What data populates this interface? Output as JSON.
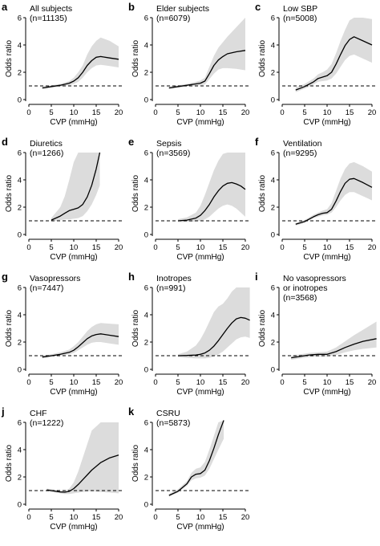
{
  "figure": {
    "xlabel": "CVP (mmHg)",
    "ylabel": "Odds ratio",
    "x_ticks": [
      0,
      5,
      10,
      15,
      20
    ],
    "y_ticks": [
      0,
      2,
      4,
      6
    ],
    "reference_line": 1
  },
  "chart_data": [
    {
      "letter": "a",
      "type": "line",
      "title_lines": [
        "All subjects",
        "(n=11135)"
      ],
      "xlim": [
        0,
        20
      ],
      "ylim": [
        0,
        6
      ],
      "reference": 1,
      "series": [
        {
          "x": [
            3,
            5,
            7,
            9,
            10,
            11,
            12,
            13,
            14,
            15,
            16,
            18,
            20
          ],
          "y": [
            0.85,
            0.95,
            1.05,
            1.2,
            1.35,
            1.6,
            2.0,
            2.5,
            2.85,
            3.1,
            3.15,
            3.05,
            2.95
          ]
        }
      ],
      "band": {
        "x": [
          3,
          5,
          7,
          9,
          10,
          11,
          12,
          13,
          14,
          15,
          16,
          18,
          20
        ],
        "lower": [
          0.75,
          0.85,
          0.95,
          1.05,
          1.15,
          1.3,
          1.6,
          2.0,
          2.3,
          2.5,
          2.55,
          2.45,
          2.35
        ],
        "upper": [
          0.95,
          1.05,
          1.15,
          1.35,
          1.6,
          2.0,
          2.5,
          3.3,
          3.9,
          4.3,
          4.55,
          4.3,
          3.9
        ]
      }
    },
    {
      "letter": "b",
      "type": "line",
      "title_lines": [
        "Elder subjects",
        "(n=6079)"
      ],
      "xlim": [
        0,
        20
      ],
      "ylim": [
        0,
        6
      ],
      "reference": 1,
      "series": [
        {
          "x": [
            3,
            5,
            7,
            9,
            10,
            11,
            12,
            13,
            14,
            15,
            16,
            18,
            20
          ],
          "y": [
            0.85,
            0.95,
            1.05,
            1.15,
            1.2,
            1.35,
            1.9,
            2.5,
            2.9,
            3.15,
            3.35,
            3.5,
            3.6
          ]
        }
      ],
      "band": {
        "x": [
          3,
          5,
          7,
          9,
          10,
          11,
          12,
          13,
          14,
          15,
          16,
          18,
          20
        ],
        "lower": [
          0.75,
          0.85,
          0.95,
          1.0,
          1.05,
          1.1,
          1.5,
          1.9,
          2.2,
          2.3,
          2.3,
          2.25,
          2.15
        ],
        "upper": [
          0.95,
          1.05,
          1.15,
          1.3,
          1.4,
          1.6,
          2.4,
          3.2,
          3.8,
          4.2,
          4.6,
          5.3,
          6.0
        ]
      }
    },
    {
      "letter": "c",
      "type": "line",
      "title_lines": [
        "Low SBP",
        "(n=5008)"
      ],
      "xlim": [
        0,
        20
      ],
      "ylim": [
        0,
        6
      ],
      "reference": 1,
      "series": [
        {
          "x": [
            3,
            5,
            7,
            8,
            9,
            10,
            11,
            12,
            13,
            14,
            15,
            16,
            18,
            20
          ],
          "y": [
            0.7,
            0.95,
            1.3,
            1.55,
            1.65,
            1.75,
            2.0,
            2.6,
            3.3,
            3.95,
            4.4,
            4.6,
            4.3,
            4.0
          ]
        }
      ],
      "band": {
        "x": [
          3,
          5,
          7,
          8,
          9,
          10,
          11,
          12,
          13,
          14,
          15,
          16,
          18,
          20
        ],
        "lower": [
          0.55,
          0.8,
          1.1,
          1.3,
          1.35,
          1.4,
          1.55,
          1.9,
          2.4,
          2.9,
          3.2,
          3.3,
          3.0,
          2.7
        ],
        "upper": [
          0.9,
          1.15,
          1.55,
          1.85,
          2.0,
          2.2,
          2.6,
          3.4,
          4.3,
          5.1,
          5.8,
          6.0,
          6.0,
          5.9
        ]
      }
    },
    {
      "letter": "d",
      "type": "line",
      "title_lines": [
        "Diuretics",
        "(n=1266)"
      ],
      "xlim": [
        0,
        20
      ],
      "ylim": [
        0,
        6
      ],
      "reference": 1,
      "series": [
        {
          "x": [
            5,
            7,
            8,
            9,
            10,
            11,
            12,
            13,
            14,
            15,
            15.8
          ],
          "y": [
            1.05,
            1.35,
            1.55,
            1.75,
            1.85,
            1.95,
            2.2,
            2.75,
            3.6,
            4.8,
            6.0
          ]
        }
      ],
      "band": {
        "x": [
          5,
          7,
          8,
          9,
          10,
          11,
          12,
          13,
          14,
          15,
          15.8
        ],
        "lower": [
          0.95,
          1.05,
          1.1,
          1.1,
          1.15,
          1.2,
          1.35,
          1.7,
          2.2,
          2.9,
          3.6
        ],
        "upper": [
          1.2,
          2.0,
          2.8,
          4.0,
          5.3,
          6.0,
          6.0,
          6.0,
          6.0,
          6.0,
          6.0
        ]
      }
    },
    {
      "letter": "e",
      "type": "line",
      "title_lines": [
        "Sepsis",
        "(n=3569)"
      ],
      "xlim": [
        0,
        20
      ],
      "ylim": [
        0,
        6
      ],
      "reference": 1,
      "series": [
        {
          "x": [
            5,
            7,
            9,
            10,
            11,
            12,
            13,
            14,
            15,
            16,
            17,
            18,
            19,
            20
          ],
          "y": [
            1.0,
            1.05,
            1.2,
            1.4,
            1.75,
            2.2,
            2.75,
            3.2,
            3.55,
            3.75,
            3.8,
            3.7,
            3.55,
            3.3
          ]
        }
      ],
      "band": {
        "x": [
          5,
          7,
          9,
          10,
          11,
          12,
          13,
          14,
          15,
          16,
          17,
          18,
          19,
          20
        ],
        "lower": [
          0.9,
          0.92,
          0.95,
          1.0,
          1.1,
          1.3,
          1.6,
          1.9,
          2.1,
          2.2,
          2.1,
          1.9,
          1.6,
          1.3
        ],
        "upper": [
          1.12,
          1.25,
          1.6,
          2.1,
          2.9,
          3.8,
          4.7,
          5.4,
          5.9,
          6.0,
          6.0,
          6.0,
          6.0,
          6.0
        ]
      }
    },
    {
      "letter": "f",
      "type": "line",
      "title_lines": [
        "Ventilation",
        "(n=9295)"
      ],
      "xlim": [
        0,
        20
      ],
      "ylim": [
        0,
        6
      ],
      "reference": 1,
      "series": [
        {
          "x": [
            3,
            5,
            7,
            8,
            9,
            10,
            11,
            12,
            13,
            14,
            15,
            16,
            18,
            20
          ],
          "y": [
            0.75,
            0.95,
            1.3,
            1.45,
            1.55,
            1.6,
            1.85,
            2.45,
            3.15,
            3.75,
            4.05,
            4.1,
            3.8,
            3.45
          ]
        }
      ],
      "band": {
        "x": [
          3,
          5,
          7,
          8,
          9,
          10,
          11,
          12,
          13,
          14,
          15,
          16,
          18,
          20
        ],
        "lower": [
          0.65,
          0.85,
          1.2,
          1.3,
          1.4,
          1.45,
          1.6,
          2.0,
          2.5,
          2.9,
          3.1,
          3.1,
          2.8,
          2.5
        ],
        "upper": [
          0.85,
          1.05,
          1.45,
          1.6,
          1.75,
          1.85,
          2.3,
          3.2,
          4.1,
          4.8,
          5.2,
          5.3,
          5.0,
          4.6
        ]
      }
    },
    {
      "letter": "g",
      "type": "line",
      "title_lines": [
        "Vasopressors",
        "(n=7447)"
      ],
      "xlim": [
        0,
        20
      ],
      "ylim": [
        0,
        6
      ],
      "reference": 1,
      "series": [
        {
          "x": [
            3,
            5,
            7,
            9,
            10,
            11,
            12,
            13,
            14,
            15,
            16,
            18,
            20
          ],
          "y": [
            0.9,
            1.0,
            1.1,
            1.25,
            1.4,
            1.65,
            1.95,
            2.25,
            2.45,
            2.55,
            2.6,
            2.5,
            2.4
          ]
        }
      ],
      "band": {
        "x": [
          3,
          5,
          7,
          9,
          10,
          11,
          12,
          13,
          14,
          15,
          16,
          18,
          20
        ],
        "lower": [
          0.8,
          0.9,
          1.0,
          1.1,
          1.2,
          1.4,
          1.6,
          1.8,
          1.95,
          2.0,
          2.0,
          1.9,
          1.8
        ],
        "upper": [
          1.0,
          1.1,
          1.25,
          1.45,
          1.7,
          2.0,
          2.4,
          2.8,
          3.1,
          3.3,
          3.4,
          3.35,
          3.3
        ]
      }
    },
    {
      "letter": "h",
      "type": "line",
      "title_lines": [
        "Inotropes",
        "(n=991)"
      ],
      "xlim": [
        0,
        20
      ],
      "ylim": [
        0,
        6
      ],
      "reference": 1,
      "series": [
        {
          "x": [
            5,
            7,
            9,
            10,
            11,
            12,
            13,
            14,
            15,
            16,
            17,
            18,
            19,
            20,
            21
          ],
          "y": [
            1.0,
            1.02,
            1.05,
            1.1,
            1.2,
            1.4,
            1.7,
            2.1,
            2.55,
            3.0,
            3.4,
            3.7,
            3.8,
            3.75,
            3.6
          ]
        }
      ],
      "band": {
        "x": [
          5,
          7,
          9,
          10,
          11,
          12,
          13,
          14,
          15,
          16,
          17,
          18,
          19,
          20,
          21
        ],
        "lower": [
          0.9,
          0.85,
          0.8,
          0.8,
          0.8,
          0.85,
          0.95,
          1.1,
          1.3,
          1.6,
          1.9,
          2.2,
          2.35,
          2.4,
          2.3
        ],
        "upper": [
          1.1,
          1.3,
          1.75,
          2.2,
          2.8,
          3.5,
          4.2,
          4.6,
          4.8,
          5.2,
          5.7,
          6.0,
          6.0,
          6.0,
          6.0
        ]
      }
    },
    {
      "letter": "i",
      "type": "line",
      "title_lines": [
        "No vasopressors",
        "or inotropes",
        "(n=3568)"
      ],
      "xlim": [
        0,
        20
      ],
      "ylim": [
        0,
        6
      ],
      "reference": 1,
      "series": [
        {
          "x": [
            2,
            4,
            6,
            8,
            10,
            12,
            14,
            16,
            18,
            21
          ],
          "y": [
            0.85,
            0.95,
            1.05,
            1.1,
            1.1,
            1.3,
            1.6,
            1.85,
            2.05,
            2.25
          ]
        }
      ],
      "band": {
        "x": [
          2,
          4,
          6,
          8,
          10,
          12,
          14,
          16,
          18,
          21
        ],
        "lower": [
          0.7,
          0.8,
          0.9,
          0.95,
          0.95,
          1.05,
          1.25,
          1.4,
          1.5,
          1.6
        ],
        "upper": [
          1.0,
          1.1,
          1.2,
          1.25,
          1.3,
          1.6,
          2.05,
          2.5,
          2.9,
          3.5
        ]
      }
    },
    {
      "letter": "j",
      "type": "line",
      "title_lines": [
        "CHF",
        "(n=1222)"
      ],
      "xlim": [
        0,
        20
      ],
      "ylim": [
        0,
        6
      ],
      "reference": 1,
      "series": [
        {
          "x": [
            4,
            5,
            6,
            7,
            8,
            9,
            10,
            11,
            12,
            13,
            14,
            16,
            18,
            20
          ],
          "y": [
            1.05,
            1.0,
            0.95,
            0.9,
            0.88,
            0.95,
            1.15,
            1.45,
            1.8,
            2.15,
            2.5,
            3.05,
            3.4,
            3.6
          ]
        }
      ],
      "band": {
        "x": [
          4,
          5,
          6,
          7,
          8,
          9,
          10,
          11,
          12,
          13,
          14,
          16,
          18,
          20
        ],
        "lower": [
          0.95,
          0.9,
          0.85,
          0.8,
          0.75,
          0.75,
          0.8,
          0.85,
          0.9,
          0.95,
          0.95,
          0.9,
          0.85,
          0.8
        ],
        "upper": [
          1.15,
          1.1,
          1.05,
          1.0,
          1.0,
          1.15,
          1.6,
          2.4,
          3.4,
          4.4,
          5.4,
          6.0,
          6.0,
          6.0
        ]
      }
    },
    {
      "letter": "k",
      "type": "line",
      "title_lines": [
        "CSRU",
        "(n=5873)"
      ],
      "xlim": [
        0,
        20
      ],
      "ylim": [
        0,
        6
      ],
      "reference": 1,
      "series": [
        {
          "x": [
            3,
            5,
            7,
            8,
            9,
            10,
            11,
            12,
            13,
            14,
            15.2
          ],
          "y": [
            0.65,
            0.95,
            1.5,
            2.0,
            2.2,
            2.25,
            2.5,
            3.2,
            4.1,
            5.1,
            6.2
          ]
        }
      ],
      "band": {
        "x": [
          3,
          5,
          7,
          8,
          9,
          10,
          11,
          12,
          13,
          14,
          15.2
        ],
        "lower": [
          0.55,
          0.85,
          1.35,
          1.75,
          1.9,
          1.95,
          2.1,
          2.6,
          3.3,
          4.0,
          4.8
        ],
        "upper": [
          0.75,
          1.1,
          1.7,
          2.3,
          2.6,
          2.7,
          3.1,
          4.0,
          5.0,
          6.0,
          6.3
        ]
      }
    }
  ]
}
